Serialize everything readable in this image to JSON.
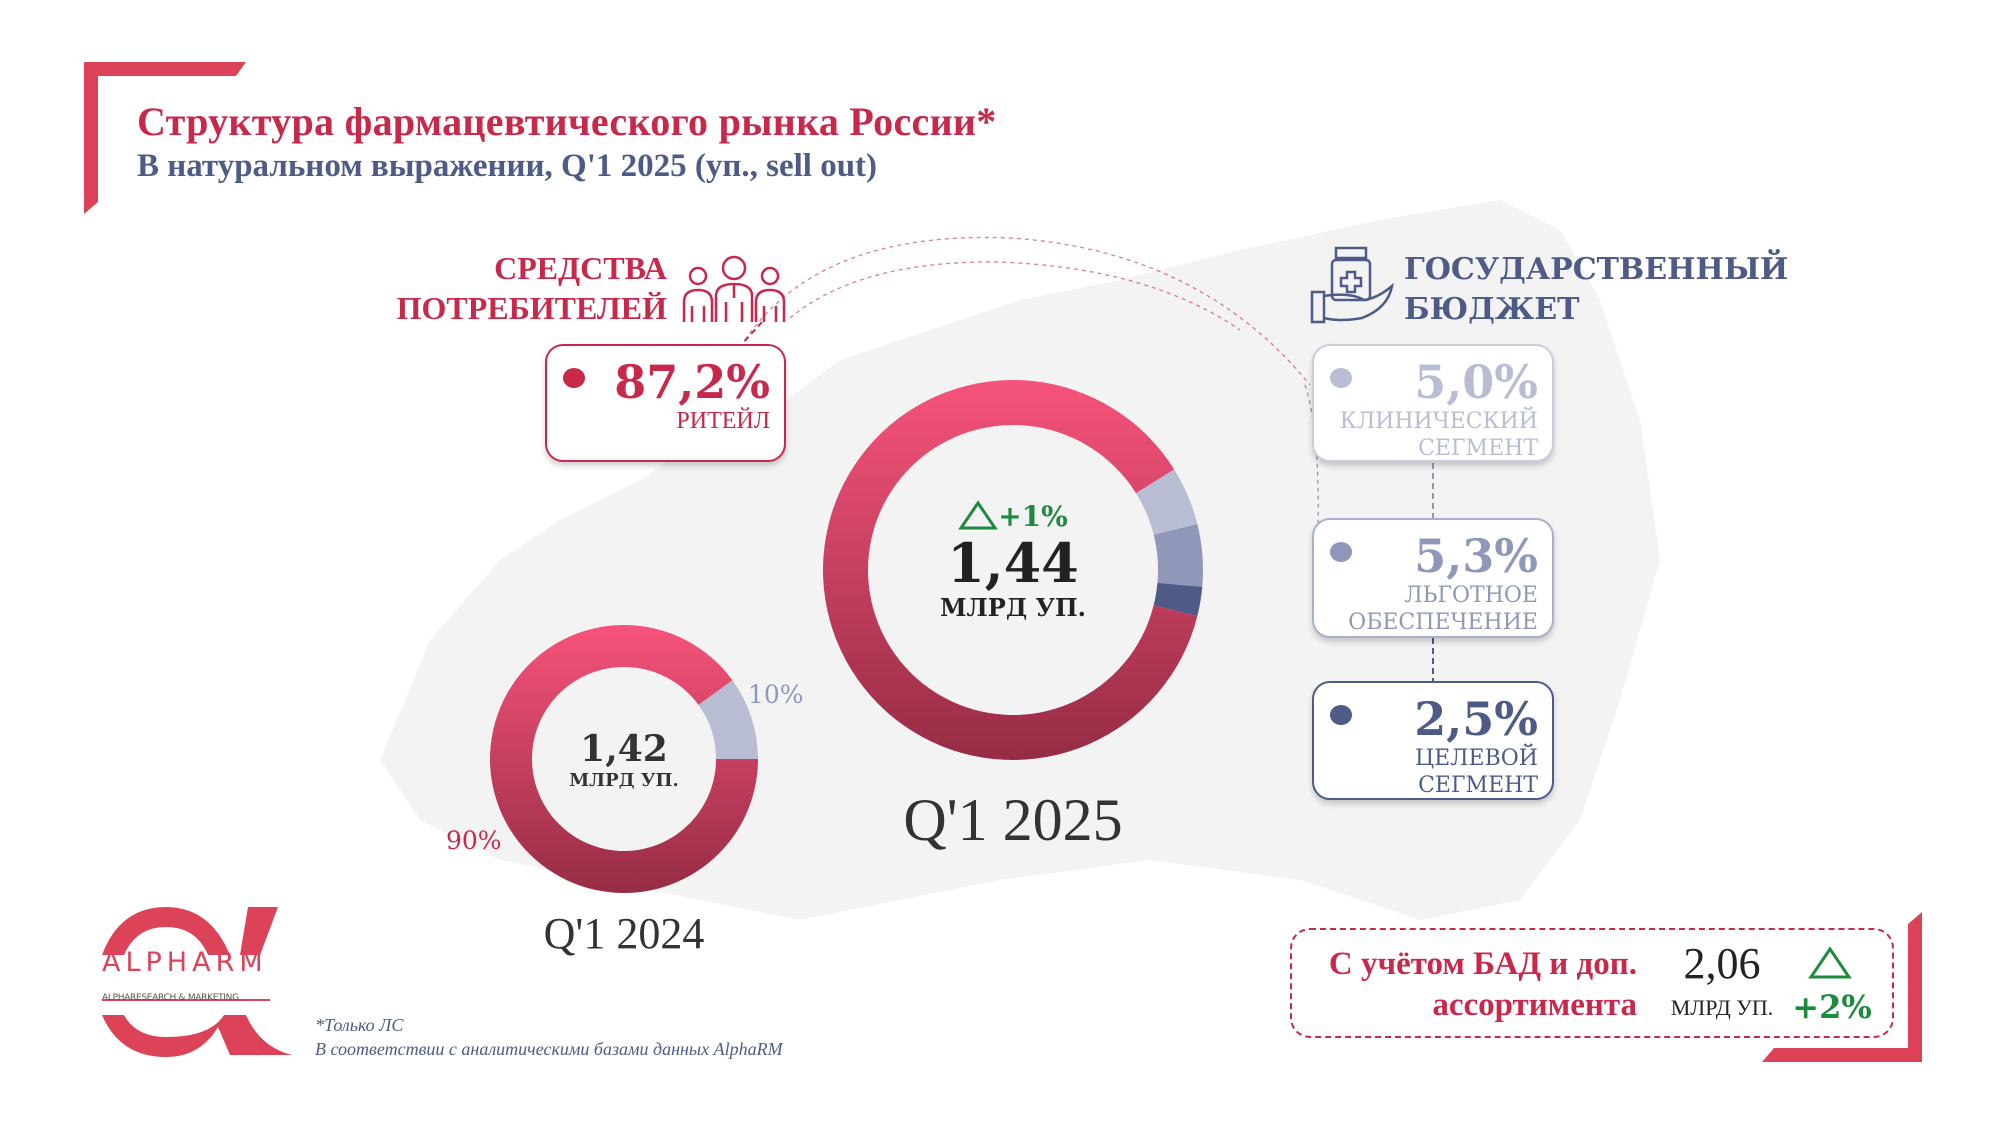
{
  "header": {
    "title": "Структура фармацевтического рынка России*",
    "subtitle": "В натуральном выражении, Q'1 2025 (уп., sell out)"
  },
  "consumer": {
    "heading_line1": "СРЕДСТВА",
    "heading_line2": "ПОТРЕБИТЕЛЕЙ",
    "icon": "people-icon",
    "retail": {
      "value": "87,2%",
      "label": "РИТЕЙЛ"
    }
  },
  "government": {
    "heading_line1": "ГОСУДАРСТВЕННЫЙ",
    "heading_line2": "БЮДЖЕТ",
    "icon": "medicine-in-hand-icon",
    "segments": [
      {
        "value": "5,0%",
        "label1": "КЛИНИЧЕСКИЙ",
        "label2": "СЕГМЕНТ"
      },
      {
        "value": "5,3%",
        "label1": "ЛЬГОТНОЕ",
        "label2": "ОБЕСПЕЧЕНИЕ"
      },
      {
        "value": "2,5%",
        "label1": "ЦЕЛЕВОЙ",
        "label2": "СЕГМЕНТ"
      }
    ]
  },
  "chart_data": [
    {
      "type": "pie",
      "title": "Q'1 2025",
      "center_value": "1,44",
      "center_unit": "МЛРД УП.",
      "change": "+1%",
      "slices": [
        {
          "name": "Ритейл",
          "value": 87.2,
          "color": "#e8486a"
        },
        {
          "name": "Клинический сегмент",
          "value": 5.0,
          "color": "#b9bdd3"
        },
        {
          "name": "Льготное обеспечение",
          "value": 5.3,
          "color": "#8f98b9"
        },
        {
          "name": "Целевой сегмент",
          "value": 2.5,
          "color": "#4e5b86"
        }
      ]
    },
    {
      "type": "pie",
      "title": "Q'1 2024",
      "center_value": "1,42",
      "center_unit": "МЛРД УП.",
      "slices": [
        {
          "name": "Средства потребителей",
          "value": 90,
          "label": "90%",
          "color": "#e8486a"
        },
        {
          "name": "Государственный бюджет",
          "value": 10,
          "label": "10%",
          "color": "#b9bdd3"
        }
      ]
    }
  ],
  "extra": {
    "label_line1": "С учётом БАД и доп.",
    "label_line2": "ассортимента",
    "value": "2,06",
    "unit": "МЛРД УП.",
    "change": "+2%"
  },
  "footnotes": {
    "line1": "*Только ЛС",
    "line2": "В соответствии с аналитическими базами данных AlphaRM"
  },
  "logo": {
    "name": "ALPHARM",
    "tagline": "ALPHARESEARCH & MARKETING"
  },
  "colors": {
    "accent": "#c8294a",
    "navy": "#4e5b86",
    "green": "#1e8a3e"
  }
}
